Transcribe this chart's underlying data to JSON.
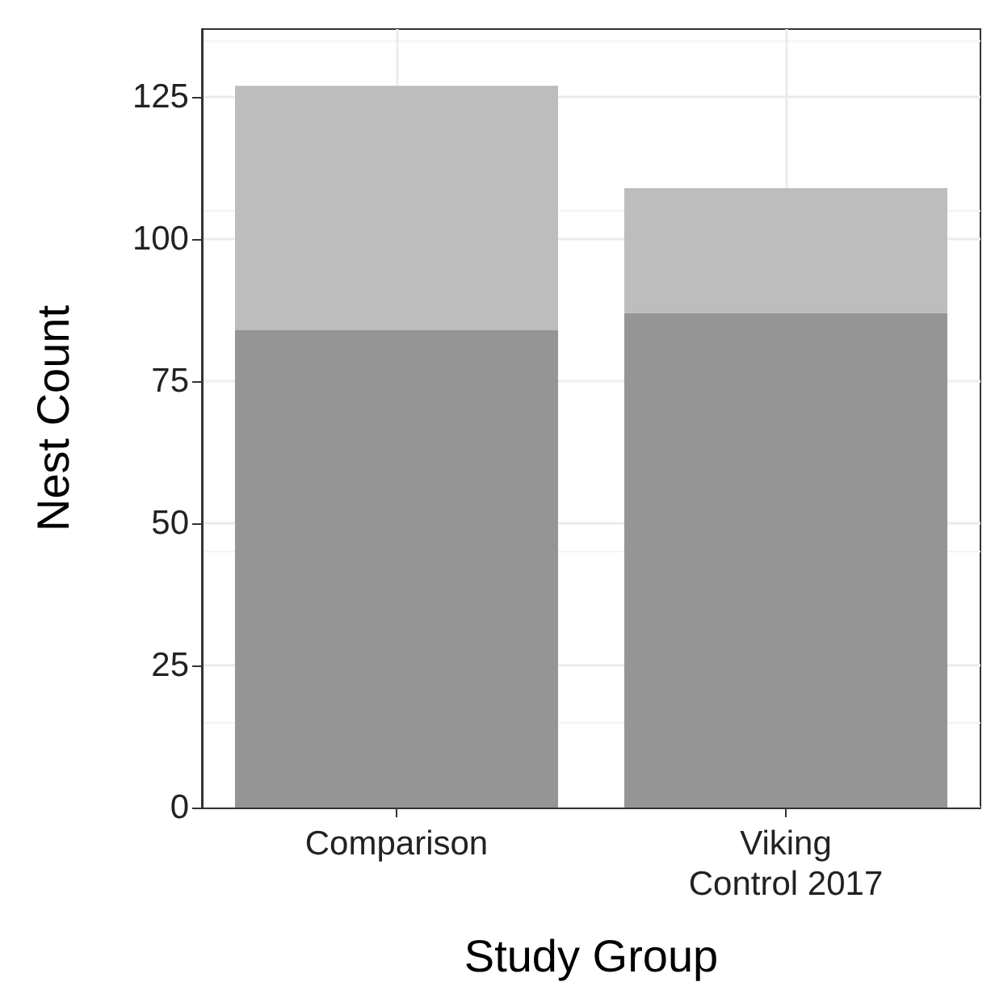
{
  "chart_data": {
    "type": "bar",
    "stacked": true,
    "xlabel": "Study Group",
    "ylabel": "Nest Count",
    "categories": [
      "Comparison",
      "Viking\nControl 2017"
    ],
    "series": [
      {
        "color": "#959595",
        "values": [
          84,
          87
        ]
      },
      {
        "color": "#bdbdbd",
        "values": [
          43,
          22
        ]
      }
    ],
    "ylim": [
      0,
      137
    ],
    "yticks": [
      0,
      25,
      50,
      75,
      100,
      125
    ],
    "grid": true
  }
}
